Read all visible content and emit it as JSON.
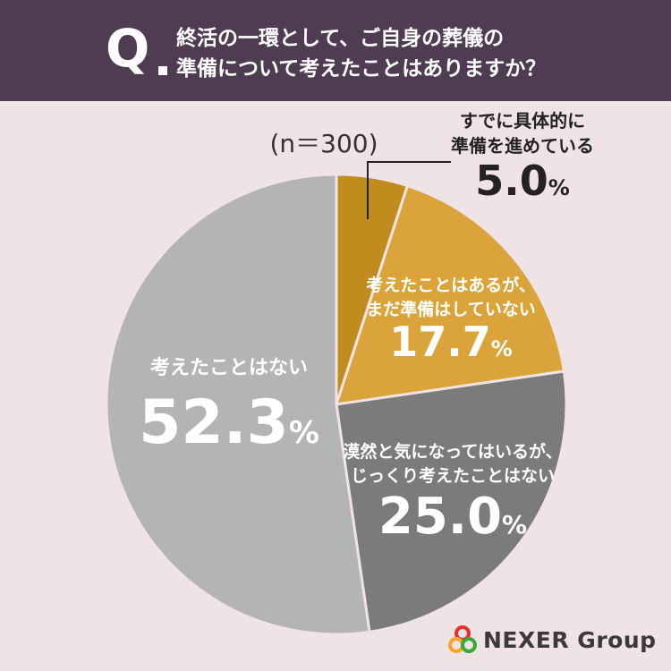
{
  "header": {
    "q_mark": "Q",
    "question_line1": "終活の一環として、ご自身の葬儀の",
    "question_line2": "準備について考えたことはありますか？"
  },
  "sample_size": "(n＝300)",
  "chart_data": {
    "type": "pie",
    "start_angle_deg": 0,
    "direction": "clockwise",
    "slices": [
      {
        "label_lines": [
          "すでに具体的に",
          "準備を進めている"
        ],
        "value": 5.0,
        "display": "5.0",
        "unit": "%",
        "color": "#c18c1e",
        "label_position": "outside"
      },
      {
        "label_lines": [
          "考えたことはあるが、",
          "まだ準備はしていない"
        ],
        "value": 17.7,
        "display": "17.7",
        "unit": "%",
        "color": "#daa43a",
        "label_position": "inside"
      },
      {
        "label_lines": [
          "漠然と気になってはいるが、",
          "じっくり考えたことはない"
        ],
        "value": 25.0,
        "display": "25.0",
        "unit": "%",
        "color": "#7b7b7b",
        "label_position": "inside"
      },
      {
        "label_lines": [
          "考えたことはない"
        ],
        "value": 52.3,
        "display": "52.3",
        "unit": "%",
        "color": "#b4b4b4",
        "label_position": "inside"
      }
    ]
  },
  "logo": {
    "text": "NEXER Group",
    "colors": [
      "#e8312f",
      "#f5a623",
      "#3aaa35"
    ]
  }
}
